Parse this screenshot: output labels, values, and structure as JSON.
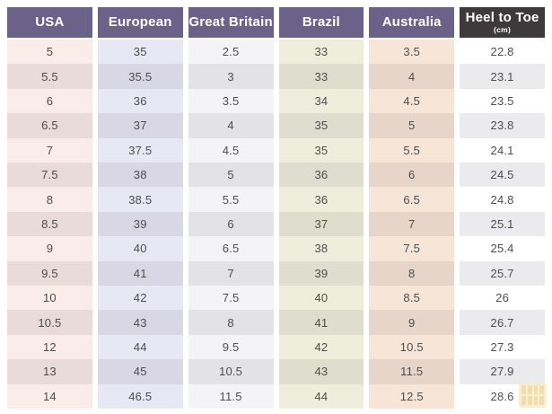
{
  "chart_data": {
    "type": "table",
    "title": "",
    "columns": [
      "USA",
      "European",
      "Great Britain",
      "Brazil",
      "Australia",
      "Heel to Toe (cm)"
    ],
    "rows": [
      [
        "5",
        "35",
        "2.5",
        "33",
        "3.5",
        "22.8"
      ],
      [
        "5.5",
        "35.5",
        "3",
        "33",
        "4",
        "23.1"
      ],
      [
        "6",
        "36",
        "3.5",
        "34",
        "4.5",
        "23.5"
      ],
      [
        "6.5",
        "37",
        "4",
        "35",
        "5",
        "23.8"
      ],
      [
        "7",
        "37.5",
        "4.5",
        "35",
        "5.5",
        "24.1"
      ],
      [
        "7.5",
        "38",
        "5",
        "36",
        "6",
        "24.5"
      ],
      [
        "8",
        "38.5",
        "5.5",
        "36",
        "6.5",
        "24.8"
      ],
      [
        "8.5",
        "39",
        "6",
        "37",
        "7",
        "25.1"
      ],
      [
        "9",
        "40",
        "6.5",
        "38",
        "7.5",
        "25.4"
      ],
      [
        "9.5",
        "41",
        "7",
        "39",
        "8",
        "25.7"
      ],
      [
        "10",
        "42",
        "7.5",
        "40",
        "8.5",
        "26"
      ],
      [
        "10.5",
        "43",
        "8",
        "41",
        "9",
        "26.7"
      ],
      [
        "12",
        "44",
        "9.5",
        "42",
        "10.5",
        "27.3"
      ],
      [
        "13",
        "45",
        "10.5",
        "43",
        "11.5",
        "27.9"
      ],
      [
        "14",
        "46.5",
        "11.5",
        "44",
        "12.5",
        "28.6"
      ]
    ]
  },
  "table": {
    "columns": [
      {
        "id": "usa",
        "label": "USA",
        "sublabel": "",
        "header_bg": "#6b6289",
        "header_fg": "#ffffff",
        "cell_bg": "#f9ece9",
        "cell_bg_alt": "#e8dbd8"
      },
      {
        "id": "european",
        "label": "European",
        "sublabel": "",
        "header_bg": "#6b6289",
        "header_fg": "#ffffff",
        "cell_bg": "#e8e7f4",
        "cell_bg_alt": "#d8d7e3"
      },
      {
        "id": "great-britain",
        "label": "Great Britain",
        "sublabel": "",
        "header_bg": "#6b6289",
        "header_fg": "#ffffff",
        "cell_bg": "#f4f4f6",
        "cell_bg_alt": "#e3e3e5"
      },
      {
        "id": "brazil",
        "label": "Brazil",
        "sublabel": "",
        "header_bg": "#6b6289",
        "header_fg": "#ffffff",
        "cell_bg": "#efeedd",
        "cell_bg_alt": "#dfddcd"
      },
      {
        "id": "australia",
        "label": "Australia",
        "sublabel": "",
        "header_bg": "#6b6289",
        "header_fg": "#ffffff",
        "cell_bg": "#f7e6d8",
        "cell_bg_alt": "#e6d5c8"
      },
      {
        "id": "heel-to-toe",
        "label": "Heel to Toe",
        "sublabel": "(cm)",
        "header_bg": "#3e3a3c",
        "header_fg": "#ffffff",
        "cell_bg": "#ffffff",
        "cell_bg_alt": "#ebebed"
      }
    ],
    "rows": [
      [
        "5",
        "35",
        "2.5",
        "33",
        "3.5",
        "22.8"
      ],
      [
        "5.5",
        "35.5",
        "3",
        "33",
        "4",
        "23.1"
      ],
      [
        "6",
        "36",
        "3.5",
        "34",
        "4.5",
        "23.5"
      ],
      [
        "6.5",
        "37",
        "4",
        "35",
        "5",
        "23.8"
      ],
      [
        "7",
        "37.5",
        "4.5",
        "35",
        "5.5",
        "24.1"
      ],
      [
        "7.5",
        "38",
        "5",
        "36",
        "6",
        "24.5"
      ],
      [
        "8",
        "38.5",
        "5.5",
        "36",
        "6.5",
        "24.8"
      ],
      [
        "8.5",
        "39",
        "6",
        "37",
        "7",
        "25.1"
      ],
      [
        "9",
        "40",
        "6.5",
        "38",
        "7.5",
        "25.4"
      ],
      [
        "9.5",
        "41",
        "7",
        "39",
        "8",
        "25.7"
      ],
      [
        "10",
        "42",
        "7.5",
        "40",
        "8.5",
        "26"
      ],
      [
        "10.5",
        "43",
        "8",
        "41",
        "9",
        "26.7"
      ],
      [
        "12",
        "44",
        "9.5",
        "42",
        "10.5",
        "27.3"
      ],
      [
        "13",
        "45",
        "10.5",
        "43",
        "11.5",
        "27.9"
      ],
      [
        "14",
        "46.5",
        "11.5",
        "44",
        "12.5",
        "28.6"
      ]
    ]
  },
  "colors": {
    "page_bg": "#ffffff",
    "cell_text": "#4d4d4d",
    "header_purple": "#6b6289",
    "header_dark": "#3e3a3c",
    "watermark_yellow": "#f7ecc9"
  }
}
